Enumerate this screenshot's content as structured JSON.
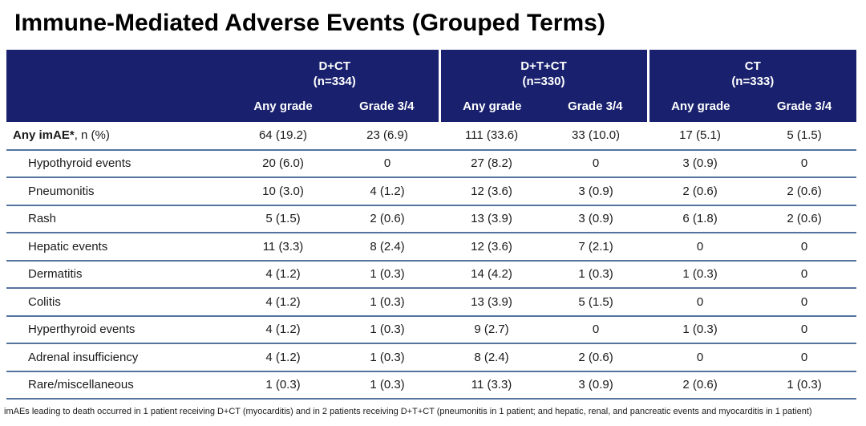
{
  "title": "Immune-Mediated Adverse Events (Grouped Terms)",
  "colors": {
    "header_bg": "#19216E",
    "header_text": "#ffffff",
    "divider": "#54749E",
    "body_text": "#1a1a1a"
  },
  "table": {
    "groups": [
      {
        "name": "D+CT",
        "n": "(n=334)"
      },
      {
        "name": "D+T+CT",
        "n": "(n=330)"
      },
      {
        "name": "CT",
        "n": "(n=333)"
      }
    ],
    "subheaders": [
      "Any grade",
      "Grade 3/4"
    ],
    "rows": [
      {
        "label_bold": "Any imAE*",
        "label_rest": ", n (%)",
        "values": [
          "64 (19.2)",
          "23 (6.9)",
          "111 (33.6)",
          "33 (10.0)",
          "17 (5.1)",
          "5 (1.5)"
        ]
      },
      {
        "label": "Hypothyroid events",
        "values": [
          "20 (6.0)",
          "0",
          "27 (8.2)",
          "0",
          "3 (0.9)",
          "0"
        ]
      },
      {
        "label": "Pneumonitis",
        "values": [
          "10 (3.0)",
          "4 (1.2)",
          "12 (3.6)",
          "3 (0.9)",
          "2 (0.6)",
          "2 (0.6)"
        ]
      },
      {
        "label": "Rash",
        "values": [
          "5 (1.5)",
          "2 (0.6)",
          "13 (3.9)",
          "3 (0.9)",
          "6 (1.8)",
          "2 (0.6)"
        ]
      },
      {
        "label": "Hepatic events",
        "values": [
          "11 (3.3)",
          "8 (2.4)",
          "12 (3.6)",
          "7 (2.1)",
          "0",
          "0"
        ]
      },
      {
        "label": "Dermatitis",
        "values": [
          "4 (1.2)",
          "1 (0.3)",
          "14 (4.2)",
          "1 (0.3)",
          "1 (0.3)",
          "0"
        ]
      },
      {
        "label": "Colitis",
        "values": [
          "4 (1.2)",
          "1 (0.3)",
          "13 (3.9)",
          "5 (1.5)",
          "0",
          "0"
        ]
      },
      {
        "label": "Hyperthyroid events",
        "values": [
          "4 (1.2)",
          "1 (0.3)",
          "9 (2.7)",
          "0",
          "1 (0.3)",
          "0"
        ]
      },
      {
        "label": "Adrenal insufficiency",
        "values": [
          "4 (1.2)",
          "1 (0.3)",
          "8 (2.4)",
          "2 (0.6)",
          "0",
          "0"
        ]
      },
      {
        "label": "Rare/miscellaneous",
        "values": [
          "1 (0.3)",
          "1 (0.3)",
          "11 (3.3)",
          "3 (0.9)",
          "2 (0.6)",
          "1 (0.3)"
        ]
      }
    ]
  },
  "footnote": "imAEs leading to death occurred in 1 patient receiving D+CT (myocarditis) and in 2 patients receiving D+T+CT (pneumonitis in 1 patient; and hepatic, renal, and pancreatic events and myocarditis in 1 patient)",
  "chart_data": {
    "type": "table",
    "title": "Immune-Mediated Adverse Events (Grouped Terms)",
    "categories": [
      "Any imAE*, n (%)",
      "Hypothyroid events",
      "Pneumonitis",
      "Rash",
      "Hepatic events",
      "Dermatitis",
      "Colitis",
      "Hyperthyroid events",
      "Adrenal insufficiency",
      "Rare/miscellaneous"
    ],
    "series": [
      {
        "name": "D+CT (n=334) Any grade",
        "values": [
          "64 (19.2)",
          "20 (6.0)",
          "10 (3.0)",
          "5 (1.5)",
          "11 (3.3)",
          "4 (1.2)",
          "4 (1.2)",
          "4 (1.2)",
          "4 (1.2)",
          "1 (0.3)"
        ]
      },
      {
        "name": "D+CT (n=334) Grade 3/4",
        "values": [
          "23 (6.9)",
          "0",
          "4 (1.2)",
          "2 (0.6)",
          "8 (2.4)",
          "1 (0.3)",
          "1 (0.3)",
          "1 (0.3)",
          "1 (0.3)",
          "1 (0.3)"
        ]
      },
      {
        "name": "D+T+CT (n=330) Any grade",
        "values": [
          "111 (33.6)",
          "27 (8.2)",
          "12 (3.6)",
          "13 (3.9)",
          "12 (3.6)",
          "14 (4.2)",
          "13 (3.9)",
          "9 (2.7)",
          "8 (2.4)",
          "11 (3.3)"
        ]
      },
      {
        "name": "D+T+CT (n=330) Grade 3/4",
        "values": [
          "33 (10.0)",
          "0",
          "3 (0.9)",
          "3 (0.9)",
          "7 (2.1)",
          "1 (0.3)",
          "5 (1.5)",
          "0",
          "2 (0.6)",
          "3 (0.9)"
        ]
      },
      {
        "name": "CT (n=333) Any grade",
        "values": [
          "17 (5.1)",
          "3 (0.9)",
          "2 (0.6)",
          "6 (1.8)",
          "0",
          "1 (0.3)",
          "0",
          "1 (0.3)",
          "0",
          "2 (0.6)"
        ]
      },
      {
        "name": "CT (n=333) Grade 3/4",
        "values": [
          "5 (1.5)",
          "0",
          "2 (0.6)",
          "2 (0.6)",
          "0",
          "0",
          "0",
          "0",
          "0",
          "1 (0.3)"
        ]
      }
    ]
  }
}
